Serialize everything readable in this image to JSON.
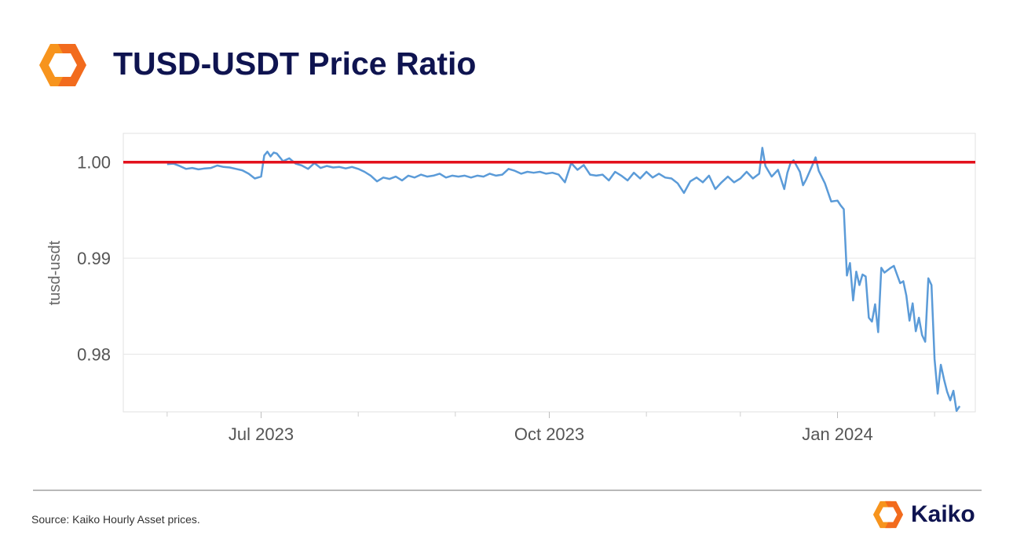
{
  "header": {
    "title": "TUSD-USDT Price Ratio"
  },
  "footer": {
    "source": "Source: Kaiko Hourly Asset prices.",
    "brand": "Kaiko"
  },
  "icons": {
    "header_logo": "kaiko-logo-icon",
    "footer_logo": "kaiko-logo-icon"
  },
  "colors": {
    "series": "#5b9bd8",
    "reference_line": "#e3101c",
    "title": "#0f1450",
    "logo_orange": "#f7941d"
  },
  "chart_data": {
    "type": "line",
    "title": "",
    "xlabel": "",
    "ylabel": "tusd-usdt",
    "ylim": [
      0.974,
      1.003
    ],
    "xlim": [
      "2023-05-18",
      "2024-02-14"
    ],
    "x_ticks": [
      {
        "date": "2023-07-01",
        "label": "Jul 2023"
      },
      {
        "date": "2023-10-01",
        "label": "Oct 2023"
      },
      {
        "date": "2024-01-01",
        "label": "Jan 2024"
      }
    ],
    "y_ticks": [
      {
        "value": 0.98,
        "label": "0.98"
      },
      {
        "value": 0.99,
        "label": "0.99"
      },
      {
        "value": 1.0,
        "label": "1.00"
      }
    ],
    "grid": true,
    "reference_line": {
      "value": 1.0
    },
    "series": [
      {
        "values": [
          [
            "2023-06-01",
            0.9998
          ],
          [
            "2023-06-03",
            0.99985
          ],
          [
            "2023-06-05",
            0.9996
          ],
          [
            "2023-06-07",
            0.9993
          ],
          [
            "2023-06-09",
            0.9994
          ],
          [
            "2023-06-11",
            0.99925
          ],
          [
            "2023-06-13",
            0.99935
          ],
          [
            "2023-06-15",
            0.9994
          ],
          [
            "2023-06-17",
            0.99965
          ],
          [
            "2023-06-19",
            0.9995
          ],
          [
            "2023-06-21",
            0.99945
          ],
          [
            "2023-06-23",
            0.9993
          ],
          [
            "2023-06-25",
            0.99915
          ],
          [
            "2023-06-27",
            0.9988
          ],
          [
            "2023-06-29",
            0.9983
          ],
          [
            "2023-07-01",
            0.9985
          ],
          [
            "2023-07-02",
            1.0007
          ],
          [
            "2023-07-03",
            1.0011
          ],
          [
            "2023-07-04",
            1.0006
          ],
          [
            "2023-07-05",
            1.001
          ],
          [
            "2023-07-06",
            1.0009
          ],
          [
            "2023-07-08",
            1.0001
          ],
          [
            "2023-07-10",
            1.0004
          ],
          [
            "2023-07-12",
            0.99985
          ],
          [
            "2023-07-14",
            0.99965
          ],
          [
            "2023-07-16",
            0.9993
          ],
          [
            "2023-07-18",
            0.9999
          ],
          [
            "2023-07-20",
            0.9994
          ],
          [
            "2023-07-22",
            0.9996
          ],
          [
            "2023-07-24",
            0.99945
          ],
          [
            "2023-07-26",
            0.9995
          ],
          [
            "2023-07-28",
            0.99935
          ],
          [
            "2023-07-30",
            0.9995
          ],
          [
            "2023-08-01",
            0.9993
          ],
          [
            "2023-08-03",
            0.999
          ],
          [
            "2023-08-05",
            0.9986
          ],
          [
            "2023-08-07",
            0.998
          ],
          [
            "2023-08-09",
            0.9984
          ],
          [
            "2023-08-11",
            0.99825
          ],
          [
            "2023-08-13",
            0.9985
          ],
          [
            "2023-08-15",
            0.9981
          ],
          [
            "2023-08-17",
            0.9986
          ],
          [
            "2023-08-19",
            0.9984
          ],
          [
            "2023-08-21",
            0.9987
          ],
          [
            "2023-08-23",
            0.9985
          ],
          [
            "2023-08-25",
            0.9986
          ],
          [
            "2023-08-27",
            0.9988
          ],
          [
            "2023-08-29",
            0.9984
          ],
          [
            "2023-08-31",
            0.9986
          ],
          [
            "2023-09-02",
            0.9985
          ],
          [
            "2023-09-04",
            0.9986
          ],
          [
            "2023-09-06",
            0.9984
          ],
          [
            "2023-09-08",
            0.9986
          ],
          [
            "2023-09-10",
            0.9985
          ],
          [
            "2023-09-12",
            0.9988
          ],
          [
            "2023-09-14",
            0.9986
          ],
          [
            "2023-09-16",
            0.9987
          ],
          [
            "2023-09-18",
            0.9993
          ],
          [
            "2023-09-20",
            0.9991
          ],
          [
            "2023-09-22",
            0.9988
          ],
          [
            "2023-09-24",
            0.999
          ],
          [
            "2023-09-26",
            0.9989
          ],
          [
            "2023-09-28",
            0.999
          ],
          [
            "2023-09-30",
            0.9988
          ],
          [
            "2023-10-02",
            0.9989
          ],
          [
            "2023-10-04",
            0.9987
          ],
          [
            "2023-10-06",
            0.9979
          ],
          [
            "2023-10-08",
            0.9999
          ],
          [
            "2023-10-10",
            0.9992
          ],
          [
            "2023-10-12",
            0.9997
          ],
          [
            "2023-10-14",
            0.9987
          ],
          [
            "2023-10-16",
            0.9986
          ],
          [
            "2023-10-18",
            0.9987
          ],
          [
            "2023-10-20",
            0.9981
          ],
          [
            "2023-10-22",
            0.999
          ],
          [
            "2023-10-24",
            0.9986
          ],
          [
            "2023-10-26",
            0.9981
          ],
          [
            "2023-10-28",
            0.9989
          ],
          [
            "2023-10-30",
            0.9983
          ],
          [
            "2023-11-01",
            0.999
          ],
          [
            "2023-11-03",
            0.9984
          ],
          [
            "2023-11-05",
            0.9988
          ],
          [
            "2023-11-07",
            0.9984
          ],
          [
            "2023-11-09",
            0.9983
          ],
          [
            "2023-11-11",
            0.9978
          ],
          [
            "2023-11-13",
            0.9968
          ],
          [
            "2023-11-15",
            0.998
          ],
          [
            "2023-11-17",
            0.9984
          ],
          [
            "2023-11-19",
            0.9979
          ],
          [
            "2023-11-21",
            0.9986
          ],
          [
            "2023-11-23",
            0.9972
          ],
          [
            "2023-11-25",
            0.9979
          ],
          [
            "2023-11-27",
            0.9985
          ],
          [
            "2023-11-29",
            0.9979
          ],
          [
            "2023-12-01",
            0.9983
          ],
          [
            "2023-12-03",
            0.999
          ],
          [
            "2023-12-05",
            0.9983
          ],
          [
            "2023-12-07",
            0.9988
          ],
          [
            "2023-12-08",
            1.0015
          ],
          [
            "2023-12-09",
            0.9996
          ],
          [
            "2023-12-11",
            0.9985
          ],
          [
            "2023-12-13",
            0.9992
          ],
          [
            "2023-12-15",
            0.9972
          ],
          [
            "2023-12-16",
            0.9989
          ],
          [
            "2023-12-17",
            0.9999
          ],
          [
            "2023-12-18",
            1.0002
          ],
          [
            "2023-12-20",
            0.999
          ],
          [
            "2023-12-21",
            0.9976
          ],
          [
            "2023-12-22",
            0.9982
          ],
          [
            "2023-12-24",
            0.9997
          ],
          [
            "2023-12-25",
            1.0005
          ],
          [
            "2023-12-26",
            0.9991
          ],
          [
            "2023-12-28",
            0.9978
          ],
          [
            "2023-12-30",
            0.9959
          ],
          [
            "2024-01-01",
            0.996
          ],
          [
            "2024-01-02",
            0.9955
          ],
          [
            "2024-01-03",
            0.9951
          ],
          [
            "2024-01-04",
            0.9882
          ],
          [
            "2024-01-05",
            0.9895
          ],
          [
            "2024-01-06",
            0.9856
          ],
          [
            "2024-01-07",
            0.9886
          ],
          [
            "2024-01-08",
            0.9872
          ],
          [
            "2024-01-09",
            0.9883
          ],
          [
            "2024-01-10",
            0.9881
          ],
          [
            "2024-01-11",
            0.9838
          ],
          [
            "2024-01-12",
            0.9834
          ],
          [
            "2024-01-13",
            0.9852
          ],
          [
            "2024-01-14",
            0.9823
          ],
          [
            "2024-01-15",
            0.989
          ],
          [
            "2024-01-16",
            0.9885
          ],
          [
            "2024-01-18",
            0.989
          ],
          [
            "2024-01-19",
            0.9892
          ],
          [
            "2024-01-21",
            0.9874
          ],
          [
            "2024-01-22",
            0.9876
          ],
          [
            "2024-01-23",
            0.9861
          ],
          [
            "2024-01-24",
            0.9835
          ],
          [
            "2024-01-25",
            0.9853
          ],
          [
            "2024-01-26",
            0.9824
          ],
          [
            "2024-01-27",
            0.9838
          ],
          [
            "2024-01-28",
            0.982
          ],
          [
            "2024-01-29",
            0.9813
          ],
          [
            "2024-01-30",
            0.9879
          ],
          [
            "2024-01-31",
            0.9872
          ],
          [
            "2024-02-01",
            0.9795
          ],
          [
            "2024-02-02",
            0.9759
          ],
          [
            "2024-02-03",
            0.9789
          ],
          [
            "2024-02-04",
            0.9774
          ],
          [
            "2024-02-05",
            0.9761
          ],
          [
            "2024-02-06",
            0.9752
          ],
          [
            "2024-02-07",
            0.9762
          ],
          [
            "2024-02-08",
            0.9741
          ],
          [
            "2024-02-09",
            0.9746
          ]
        ]
      }
    ]
  }
}
